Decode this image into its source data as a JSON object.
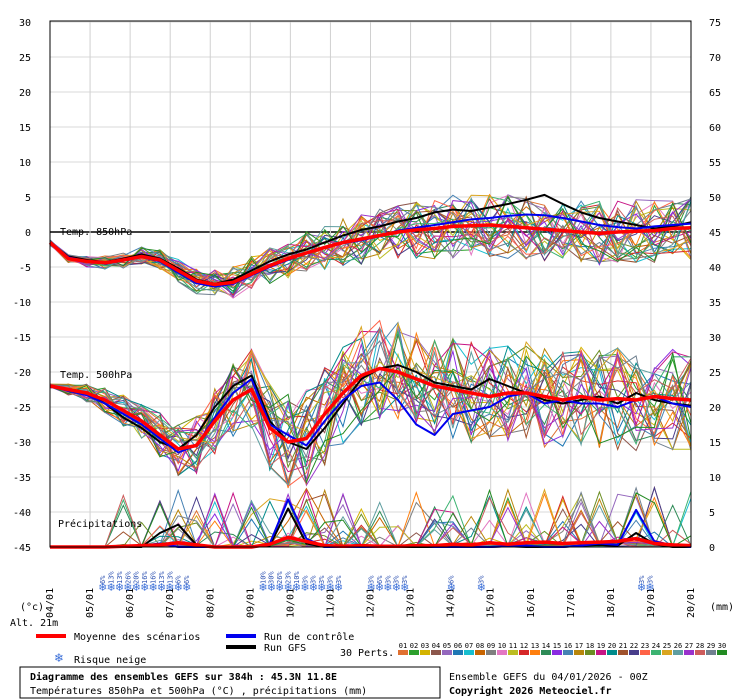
{
  "chart_data": {
    "type": "line",
    "title": "Diagramme des ensembles GEFS sur 384h : 45.3N 11.8E",
    "subtitle": "Températures 850hPa et 500hPa (°C) , précipitations (mm)",
    "run_info": "Ensemble GEFS du 04/01/2026 - 00Z",
    "copyright": "Copyright 2026 Meteociel.fr",
    "altitude": "Alt. 21m",
    "left_unit": "(°c)",
    "right_unit": "(mm)",
    "left_axis_ticks": [
      30,
      25,
      20,
      15,
      10,
      5,
      0,
      -5,
      -10,
      -15,
      -20,
      -25,
      -30,
      -35,
      -40,
      -45
    ],
    "right_axis_ticks": [
      75,
      70,
      65,
      60,
      55,
      50,
      45,
      40,
      35,
      30,
      25,
      20,
      15,
      10,
      5,
      0
    ],
    "x_labels": [
      "04/01",
      "05/01",
      "06/01",
      "07/01",
      "08/01",
      "09/01",
      "10/01",
      "11/01",
      "12/01",
      "13/01",
      "14/01",
      "15/01",
      "16/01",
      "17/01",
      "18/01",
      "19/01",
      "20/01"
    ],
    "panel_labels": {
      "t850": "Temp. 850hPa",
      "t500": "Temp. 500hPa",
      "precip": "Précipitations"
    },
    "t850_mean": [
      -1.5,
      -3.8,
      -4.2,
      -4.4,
      -4.0,
      -3.5,
      -4.0,
      -5.5,
      -7.0,
      -7.5,
      -7.2,
      -6.0,
      -4.8,
      -3.8,
      -3.0,
      -2.2,
      -1.5,
      -1.0,
      -0.5,
      0.0,
      0.3,
      0.5,
      0.8,
      0.9,
      1.0,
      0.8,
      0.6,
      0.4,
      0.2,
      0.0,
      -0.2,
      0.0,
      0.1,
      0.2,
      0.5,
      0.6
    ],
    "t850_control": [
      -1.5,
      -3.6,
      -4.2,
      -4.5,
      -4.1,
      -3.6,
      -4.2,
      -5.8,
      -7.3,
      -7.8,
      -7.4,
      -6.2,
      -5.0,
      -4.0,
      -3.0,
      -2.1,
      -1.6,
      -1.2,
      -0.6,
      0.2,
      0.6,
      1.0,
      1.4,
      1.8,
      2.0,
      2.3,
      2.5,
      2.4,
      2.0,
      1.5,
      1.0,
      0.7,
      0.5,
      0.8,
      1.0,
      1.2
    ],
    "t850_gfs": [
      -1.5,
      -3.5,
      -4.0,
      -4.3,
      -3.8,
      -3.2,
      -3.8,
      -5.2,
      -6.8,
      -7.4,
      -6.8,
      -5.5,
      -4.2,
      -3.2,
      -2.5,
      -1.5,
      -0.5,
      0.3,
      0.8,
      1.5,
      2.0,
      2.8,
      3.2,
      3.0,
      3.5,
      4.0,
      4.6,
      5.3,
      4.0,
      2.8,
      2.0,
      1.5,
      1.0,
      0.5,
      0.8,
      1.4
    ],
    "t500_mean": [
      -22.0,
      -22.5,
      -23.0,
      -24.0,
      -25.5,
      -27.0,
      -29.0,
      -31.0,
      -30.5,
      -27.0,
      -24.0,
      -22.5,
      -28.0,
      -30.0,
      -29.5,
      -26.0,
      -23.0,
      -20.5,
      -19.5,
      -20.0,
      -21.0,
      -22.0,
      -22.5,
      -23.0,
      -23.5,
      -23.0,
      -23.0,
      -23.5,
      -24.0,
      -23.5,
      -24.0,
      -23.8,
      -24.0,
      -23.5,
      -23.8,
      -24.0
    ],
    "t500_control": [
      -22.0,
      -22.7,
      -23.3,
      -24.5,
      -26.0,
      -27.5,
      -29.5,
      -31.5,
      -30.5,
      -26.5,
      -23.0,
      -21.0,
      -27.5,
      -29.0,
      -30.5,
      -27.0,
      -24.0,
      -22.0,
      -21.5,
      -24.0,
      -27.5,
      -29.0,
      -26.0,
      -25.5,
      -25.0,
      -23.5,
      -23.0,
      -24.5,
      -24.0,
      -24.5,
      -24.5,
      -25.0,
      -24.0,
      -23.5,
      -24.5,
      -25.0
    ],
    "t500_gfs": [
      -22.0,
      -22.5,
      -23.0,
      -24.5,
      -26.5,
      -28.0,
      -30.0,
      -31.0,
      -29.0,
      -25.0,
      -22.0,
      -20.5,
      -27.0,
      -30.0,
      -31.0,
      -28.0,
      -24.5,
      -21.0,
      -19.5,
      -19.0,
      -20.0,
      -21.5,
      -22.0,
      -22.5,
      -21.0,
      -22.0,
      -23.0,
      -24.0,
      -24.5,
      -24.0,
      -23.5,
      -24.5,
      -23.0,
      -24.0,
      -24.5,
      -24.8
    ],
    "precip_mean_mm": [
      0,
      0,
      0,
      0,
      0.1,
      0.2,
      0.3,
      0.6,
      0.3,
      0,
      0,
      0,
      0.4,
      1.4,
      0.8,
      0.2,
      0.1,
      0.2,
      0.1,
      0.1,
      0.2,
      0.2,
      0.4,
      0.3,
      0.6,
      0.4,
      0.6,
      0.7,
      0.5,
      0.6,
      0.7,
      0.8,
      1.2,
      0.5,
      0.3,
      0.2
    ],
    "precip_control_mm": [
      0,
      0,
      0,
      0,
      0,
      0.2,
      0.5,
      0,
      0,
      0,
      0,
      0,
      0.5,
      6.8,
      1.2,
      0,
      0,
      0,
      0,
      0,
      0.2,
      0,
      0,
      0,
      0,
      0.1,
      0.2,
      0,
      0,
      0.2,
      0.5,
      0.3,
      5.3,
      0.8,
      0.2,
      0
    ],
    "precip_gfs_mm": [
      0,
      0,
      0,
      0,
      0,
      0,
      2.0,
      3.2,
      0.3,
      0,
      0,
      0,
      0.2,
      5.5,
      0.5,
      0,
      0,
      0.2,
      0,
      0,
      0,
      0,
      0.4,
      0,
      0,
      0.1,
      0,
      0,
      0,
      0.2,
      0.3,
      0.2,
      2.0,
      0.4,
      0,
      0
    ],
    "snow_risk": [
      {
        "day": 1.3,
        "pcts": [
          "6%",
          "13%",
          "13%",
          "26%",
          "20%",
          "16%",
          "16%",
          "13%",
          "13%",
          "6%",
          "6%"
        ]
      },
      {
        "day": 5.3,
        "pcts": [
          "10%",
          "30%",
          "26%",
          "23%",
          "10%",
          "3%",
          "3%",
          "3%",
          "3%",
          "3%"
        ]
      },
      {
        "day": 8.0,
        "pcts": [
          "3%",
          "6%",
          "3%",
          "3%",
          "3%"
        ]
      },
      {
        "day": 10.0,
        "pcts": [
          "6%"
        ]
      },
      {
        "day": 10.75,
        "pcts": [
          "3%"
        ]
      },
      {
        "day": 14.75,
        "pcts": [
          "3%",
          "3%"
        ]
      }
    ],
    "legend": {
      "mean": "Moyenne des scénarios",
      "control": "Run de contrôle",
      "gfs": "Run GFS",
      "snow": "Risque neige",
      "perts_label": "30 Perts."
    },
    "pert_colors": [
      "#e07030",
      "#2ca02c",
      "#d4b400",
      "#8c564b",
      "#9467bd",
      "#1f77b4",
      "#17becf",
      "#c86400",
      "#7f7f7f",
      "#e377c2",
      "#bcbd22",
      "#d62728",
      "#ff7f0e",
      "#2e8b57",
      "#8a2be2",
      "#4682b4",
      "#b8860b",
      "#6b8e23",
      "#c71585",
      "#008b8b",
      "#a0522d",
      "#483d8b",
      "#ff6347",
      "#3cb371",
      "#daa520",
      "#5f9ea0",
      "#9932cc",
      "#cd5c5c",
      "#708090",
      "#228b22"
    ],
    "colors": {
      "mean": "#ff0000",
      "control": "#0000ee",
      "gfs": "#000000",
      "zero_line": "#000000"
    }
  }
}
